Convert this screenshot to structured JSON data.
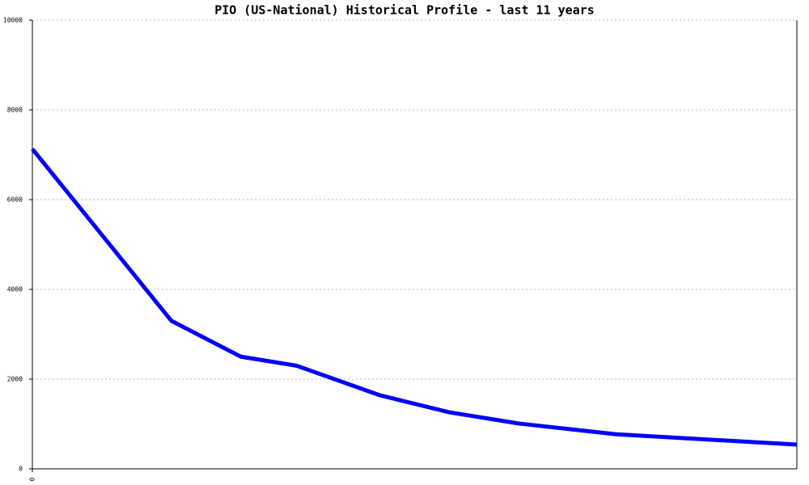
{
  "chart_data": {
    "type": "line",
    "title": "PIO (US-National) Historical Profile - last 11 years",
    "x": [
      0,
      2,
      3,
      3.8,
      5,
      6,
      7,
      8.4,
      11
    ],
    "series": [
      {
        "name": "PIO",
        "color": "#0000ff",
        "values": [
          7130,
          3300,
          2500,
          2300,
          1640,
          1260,
          1010,
          770,
          540
        ]
      }
    ],
    "xlim": [
      0,
      11
    ],
    "xticks": [
      0
    ],
    "ylim": [
      0,
      10000
    ],
    "yticks": [
      0,
      2000,
      4000,
      6000,
      8000,
      10000
    ],
    "grid": true
  }
}
